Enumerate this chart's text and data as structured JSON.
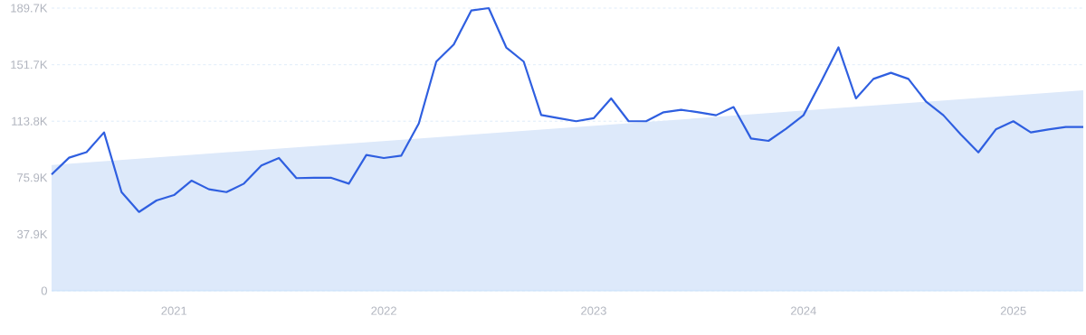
{
  "chart_data": {
    "type": "line",
    "xlim": [
      "2020-06",
      "2025-05"
    ],
    "ylim": [
      0,
      189700
    ],
    "xticks": [
      {
        "value": "2021-01",
        "label": "2021"
      },
      {
        "value": "2022-01",
        "label": "2022"
      },
      {
        "value": "2023-01",
        "label": "2023"
      },
      {
        "value": "2024-01",
        "label": "2024"
      },
      {
        "value": "2025-01",
        "label": "2025"
      }
    ],
    "yticks": [
      {
        "value": 0,
        "label": "0"
      },
      {
        "value": 37900,
        "label": "37.9K"
      },
      {
        "value": 75900,
        "label": "75.9K"
      },
      {
        "value": 113800,
        "label": "113.8K"
      },
      {
        "value": 151700,
        "label": "151.7K"
      },
      {
        "value": 189700,
        "label": "189.7K"
      }
    ],
    "grid": "y",
    "marker": "none",
    "series": [
      {
        "type": "area",
        "color": "#dde9fa",
        "x": [
          "2020-06",
          "2025-05"
        ],
        "values": [
          84400,
          134500
        ]
      },
      {
        "color": "#2f5fe0",
        "line_style": "solid",
        "x": [
          "2020-06",
          "2020-07",
          "2020-08",
          "2020-09",
          "2020-10",
          "2020-11",
          "2020-12",
          "2021-01",
          "2021-02",
          "2021-03",
          "2021-04",
          "2021-05",
          "2021-06",
          "2021-07",
          "2021-08",
          "2021-09",
          "2021-10",
          "2021-11",
          "2021-12",
          "2022-01",
          "2022-02",
          "2022-03",
          "2022-04",
          "2022-05",
          "2022-06",
          "2022-07",
          "2022-08",
          "2022-09",
          "2022-10",
          "2022-11",
          "2022-12",
          "2023-01",
          "2023-02",
          "2023-03",
          "2023-04",
          "2023-05",
          "2023-06",
          "2023-07",
          "2023-08",
          "2023-09",
          "2023-10",
          "2023-11",
          "2023-12",
          "2024-01",
          "2024-02",
          "2024-03",
          "2024-04",
          "2024-05",
          "2024-06",
          "2024-07",
          "2024-08",
          "2024-09",
          "2024-10",
          "2024-11",
          "2024-12",
          "2025-01",
          "2025-02",
          "2025-03",
          "2025-04",
          "2025-05"
        ],
        "values": [
          78000,
          89300,
          93000,
          106300,
          66200,
          52900,
          60600,
          64200,
          73900,
          68100,
          66200,
          71900,
          84100,
          89100,
          75600,
          75800,
          75800,
          71900,
          91100,
          89100,
          90700,
          112300,
          153800,
          165300,
          188100,
          189700,
          163300,
          153800,
          118000,
          115800,
          113800,
          115800,
          129100,
          113800,
          113800,
          119800,
          121400,
          119800,
          117800,
          123300,
          102200,
          100600,
          108700,
          117800,
          140200,
          163400,
          129100,
          142200,
          146300,
          142200,
          127100,
          117800,
          104800,
          92900,
          108300,
          113800,
          106300,
          108300,
          109900,
          109900
        ]
      }
    ]
  }
}
